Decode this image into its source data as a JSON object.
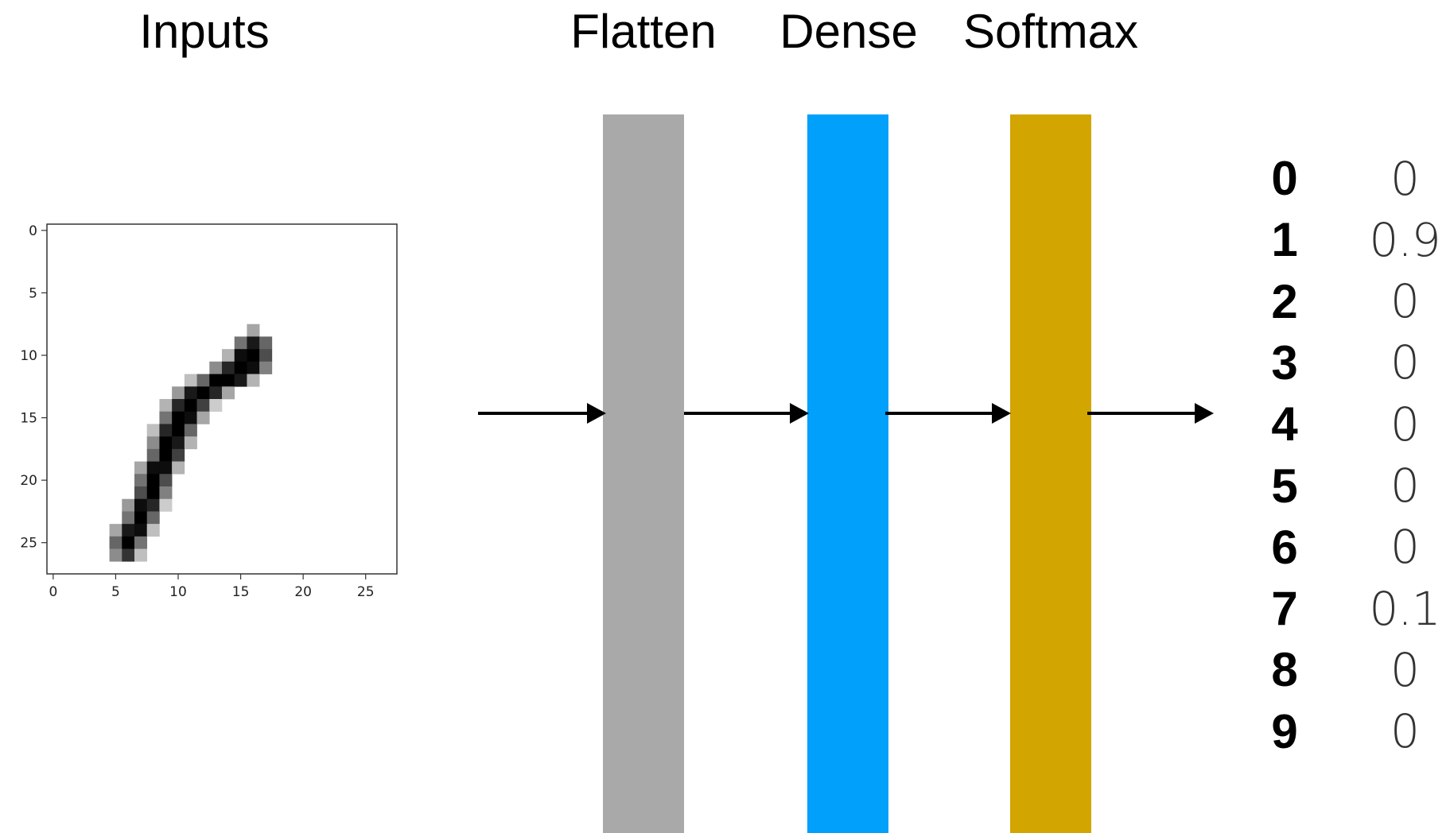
{
  "labels": {
    "inputs": "Inputs",
    "flatten": "Flatten",
    "dense": "Dense",
    "softmax": "Softmax"
  },
  "colors": {
    "flatten": "#a9a9a9",
    "dense": "#00a0fb",
    "softmax": "#d3a500"
  },
  "input_image": {
    "x_ticks": [
      "0",
      "5",
      "10",
      "15",
      "20",
      "25"
    ],
    "y_ticks": [
      "0",
      "5",
      "10",
      "15",
      "20",
      "25"
    ],
    "grid_size": 28,
    "pixels": [
      [
        8,
        16,
        0.35
      ],
      [
        9,
        15,
        0.55
      ],
      [
        9,
        16,
        0.9
      ],
      [
        9,
        17,
        0.6
      ],
      [
        10,
        14,
        0.3
      ],
      [
        10,
        15,
        0.95
      ],
      [
        10,
        16,
        1.0
      ],
      [
        10,
        17,
        0.7
      ],
      [
        11,
        13,
        0.45
      ],
      [
        11,
        14,
        0.85
      ],
      [
        11,
        15,
        1.0
      ],
      [
        11,
        16,
        0.95
      ],
      [
        11,
        17,
        0.5
      ],
      [
        12,
        11,
        0.25
      ],
      [
        12,
        12,
        0.6
      ],
      [
        12,
        13,
        1.0
      ],
      [
        12,
        14,
        1.0
      ],
      [
        12,
        15,
        0.9
      ],
      [
        12,
        16,
        0.3
      ],
      [
        13,
        10,
        0.4
      ],
      [
        13,
        11,
        0.9
      ],
      [
        13,
        12,
        1.0
      ],
      [
        13,
        13,
        0.85
      ],
      [
        13,
        14,
        0.35
      ],
      [
        14,
        9,
        0.3
      ],
      [
        14,
        10,
        0.85
      ],
      [
        14,
        11,
        1.0
      ],
      [
        14,
        12,
        0.75
      ],
      [
        14,
        13,
        0.2
      ],
      [
        15,
        9,
        0.55
      ],
      [
        15,
        10,
        1.0
      ],
      [
        15,
        11,
        0.95
      ],
      [
        15,
        12,
        0.35
      ],
      [
        16,
        8,
        0.25
      ],
      [
        16,
        9,
        0.85
      ],
      [
        16,
        10,
        1.0
      ],
      [
        16,
        11,
        0.6
      ],
      [
        17,
        8,
        0.45
      ],
      [
        17,
        9,
        1.0
      ],
      [
        17,
        10,
        0.9
      ],
      [
        17,
        11,
        0.3
      ],
      [
        18,
        8,
        0.6
      ],
      [
        18,
        9,
        1.0
      ],
      [
        18,
        10,
        0.75
      ],
      [
        19,
        7,
        0.35
      ],
      [
        19,
        8,
        0.95
      ],
      [
        19,
        9,
        0.95
      ],
      [
        19,
        10,
        0.3
      ],
      [
        20,
        7,
        0.55
      ],
      [
        20,
        8,
        1.0
      ],
      [
        20,
        9,
        0.7
      ],
      [
        21,
        7,
        0.7
      ],
      [
        21,
        8,
        1.0
      ],
      [
        21,
        9,
        0.5
      ],
      [
        22,
        6,
        0.4
      ],
      [
        22,
        7,
        0.95
      ],
      [
        22,
        8,
        0.85
      ],
      [
        22,
        9,
        0.2
      ],
      [
        23,
        6,
        0.55
      ],
      [
        23,
        7,
        1.0
      ],
      [
        23,
        8,
        0.6
      ],
      [
        24,
        5,
        0.35
      ],
      [
        24,
        6,
        0.9
      ],
      [
        24,
        7,
        0.95
      ],
      [
        24,
        8,
        0.25
      ],
      [
        25,
        5,
        0.6
      ],
      [
        25,
        6,
        1.0
      ],
      [
        25,
        7,
        0.55
      ],
      [
        26,
        5,
        0.45
      ],
      [
        26,
        6,
        0.8
      ],
      [
        26,
        7,
        0.25
      ]
    ]
  },
  "outputs": [
    {
      "digit": "0",
      "prob": "0"
    },
    {
      "digit": "1",
      "prob": "0.9"
    },
    {
      "digit": "2",
      "prob": "0"
    },
    {
      "digit": "3",
      "prob": "0"
    },
    {
      "digit": "4",
      "prob": "0"
    },
    {
      "digit": "5",
      "prob": "0"
    },
    {
      "digit": "6",
      "prob": "0"
    },
    {
      "digit": "7",
      "prob": "0.1"
    },
    {
      "digit": "8",
      "prob": "0"
    },
    {
      "digit": "9",
      "prob": "0"
    }
  ]
}
